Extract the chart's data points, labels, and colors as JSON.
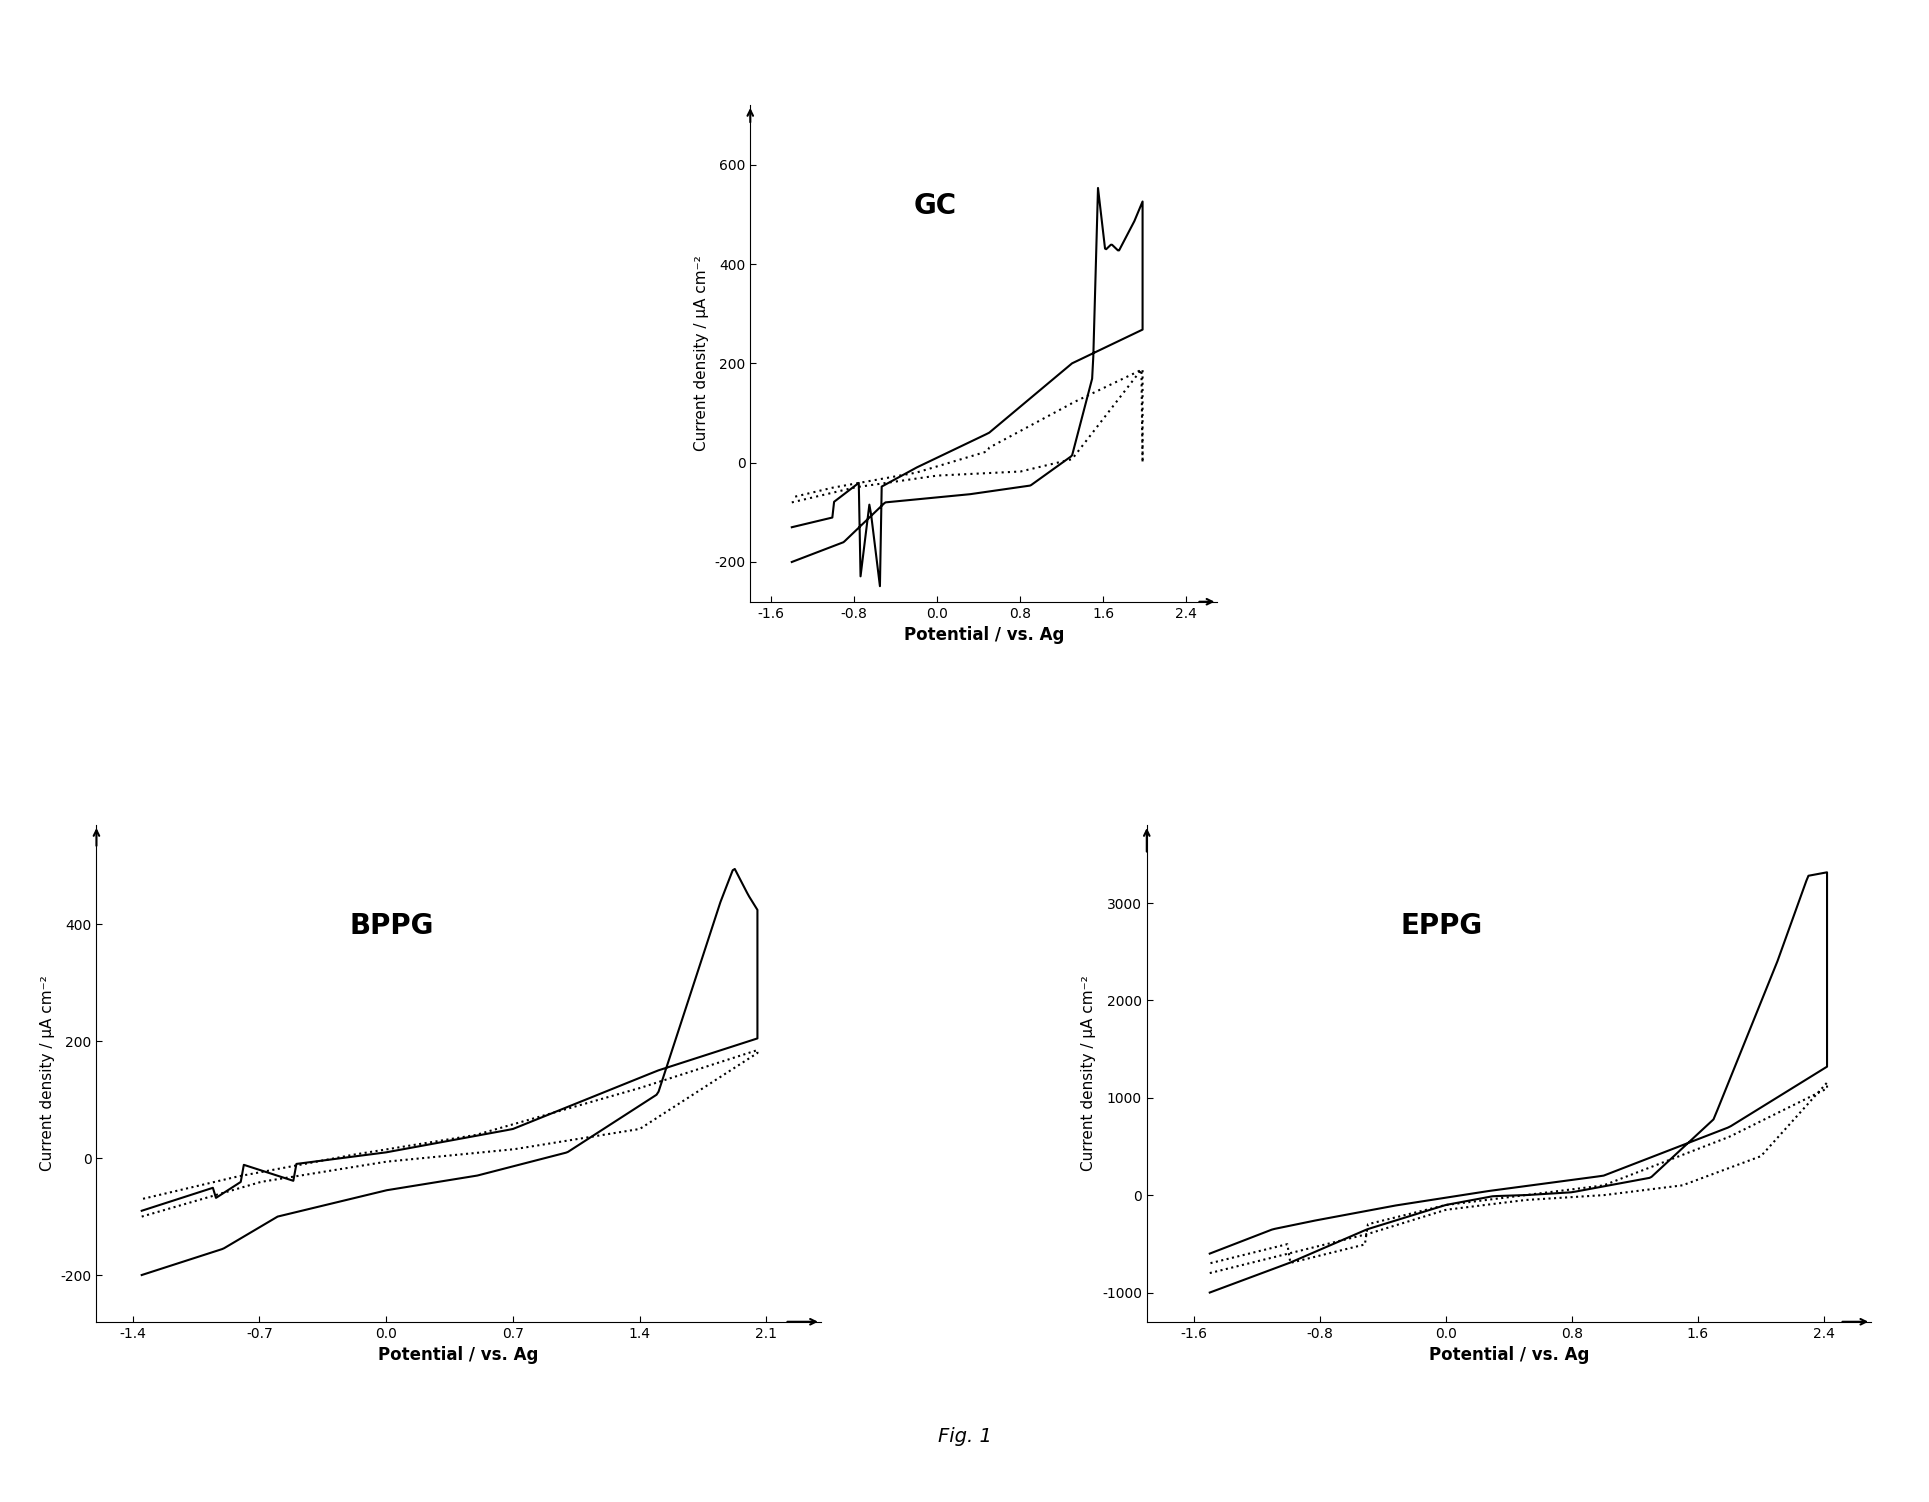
{
  "fig_title": "Fig. 1",
  "background_color": "#ffffff",
  "panels": [
    {
      "label": "GC",
      "xlabel": "Potential / vs. Ag",
      "ylabel": "Current density / μA cm⁻²",
      "xlim": [
        -1.8,
        2.7
      ],
      "ylim": [
        -280,
        700
      ],
      "xticks": [
        -1.6,
        -0.8,
        0.0,
        0.8,
        1.6,
        2.4
      ],
      "yticks": [
        -200,
        0,
        200,
        400,
        600
      ],
      "position": "top_center"
    },
    {
      "label": "BPPG",
      "xlabel": "Potential / vs. Ag",
      "ylabel": "Current density / μA cm⁻²",
      "xlim": [
        -1.6,
        2.4
      ],
      "ylim": [
        -280,
        560
      ],
      "xticks": [
        -1.4,
        -0.7,
        0.0,
        0.7,
        1.4,
        2.1
      ],
      "yticks": [
        -200,
        0,
        200,
        400
      ],
      "position": "bottom_left"
    },
    {
      "label": "EPPG",
      "xlabel": "Potential / vs. Ag",
      "ylabel": "Current density / μA cm⁻²",
      "xlim": [
        -1.9,
        2.7
      ],
      "ylim": [
        -1300,
        3800
      ],
      "xticks": [
        -1.6,
        -0.8,
        0.0,
        0.8,
        1.6,
        2.4
      ],
      "yticks": [
        -1000,
        0,
        1000,
        2000,
        3000
      ],
      "position": "bottom_right"
    }
  ]
}
